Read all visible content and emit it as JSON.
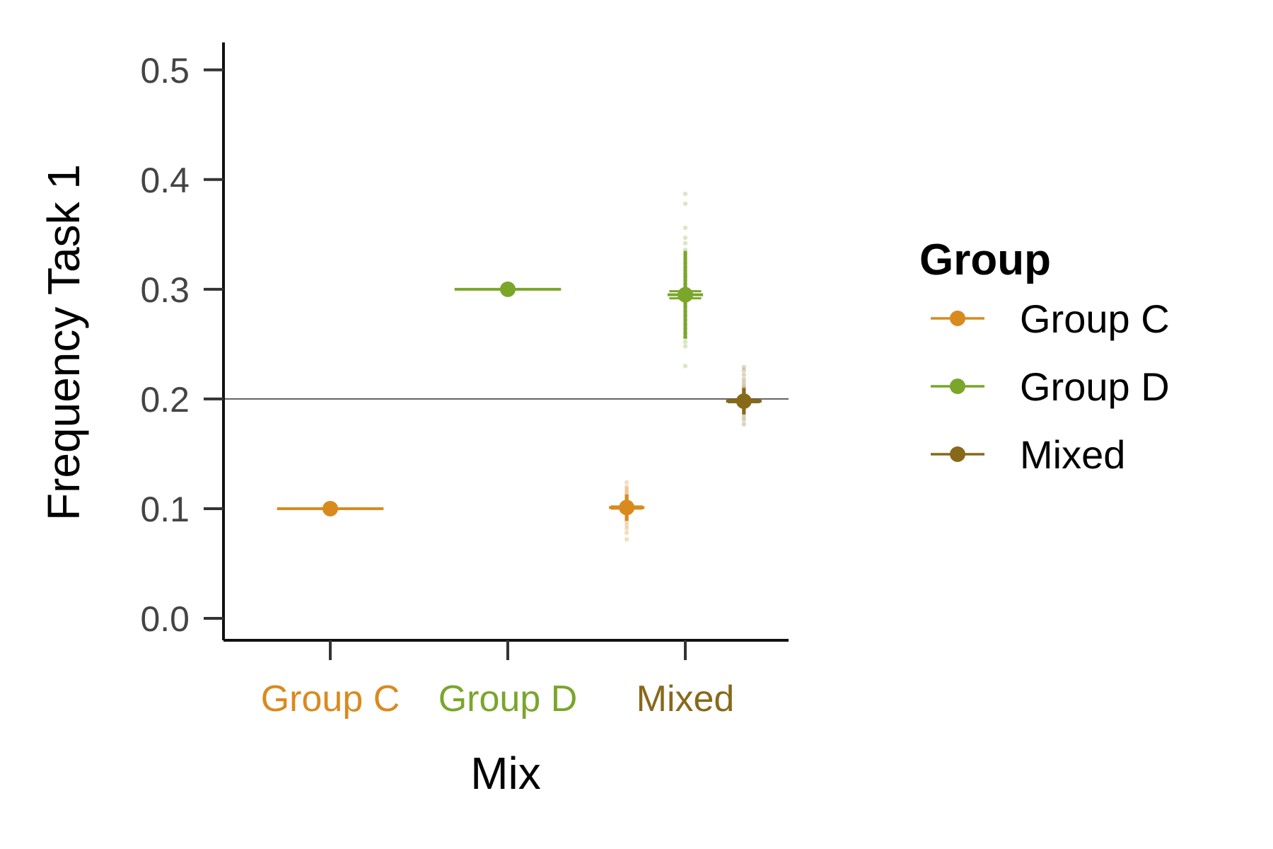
{
  "chart_data": {
    "type": "scatter",
    "title": "",
    "xlabel": "Mix",
    "ylabel": "Frequency Task 1",
    "ylim": [
      -0.02,
      0.525
    ],
    "yticks": [
      "0.0",
      "0.1",
      "0.2",
      "0.3",
      "0.4",
      "0.5"
    ],
    "ytick_values": [
      0.0,
      0.1,
      0.2,
      0.3,
      0.4,
      0.5
    ],
    "categories": [
      "Group C",
      "Group D",
      "Mixed"
    ],
    "category_colors": [
      "#D98A1F",
      "#7AA62A",
      "#87691A"
    ],
    "reference_line": {
      "y": 0.2,
      "color": "#333333"
    },
    "grid": false,
    "legend": {
      "title": "Group",
      "placement": "right",
      "entries": [
        {
          "label": "Group C",
          "color": "#D98A1F"
        },
        {
          "label": "Group D",
          "color": "#7AA62A"
        },
        {
          "label": "Mixed",
          "color": "#87691A"
        }
      ]
    },
    "series": [
      {
        "name": "Group C",
        "color": "#D98A1F",
        "points": [
          {
            "category": "Group C",
            "offset": 0.0,
            "mean": 0.1,
            "half_width": 0.3,
            "sd": 0.0
          },
          {
            "category": "Mixed",
            "offset": -0.33,
            "mean": 0.101,
            "half_width": 0.1,
            "sd": 0.012
          }
        ],
        "samples": [
          {
            "category": "Mixed",
            "offset": -0.33,
            "values": [
              0.072,
              0.078,
              0.082,
              0.085,
              0.088,
              0.09,
              0.092,
              0.094,
              0.096,
              0.098,
              0.1,
              0.1,
              0.101,
              0.102,
              0.104,
              0.106,
              0.108,
              0.11,
              0.112,
              0.114,
              0.116,
              0.118,
              0.12,
              0.124
            ]
          }
        ]
      },
      {
        "name": "Group D",
        "color": "#7AA62A",
        "points": [
          {
            "category": "Group D",
            "offset": 0.0,
            "mean": 0.3,
            "half_width": 0.3,
            "sd": 0.0
          },
          {
            "category": "Mixed",
            "offset": 0.0,
            "mean": 0.295,
            "half_width": 0.1,
            "sd": 0.04
          }
        ],
        "samples": [
          {
            "category": "Mixed",
            "offset": 0.0,
            "values": [
              0.23,
              0.248,
              0.252,
              0.256,
              0.26,
              0.264,
              0.268,
              0.272,
              0.276,
              0.28,
              0.284,
              0.287,
              0.29,
              0.293,
              0.295,
              0.298,
              0.3,
              0.302,
              0.305,
              0.308,
              0.311,
              0.314,
              0.317,
              0.32,
              0.324,
              0.328,
              0.332,
              0.336,
              0.342,
              0.347,
              0.356,
              0.378,
              0.387
            ]
          }
        ]
      },
      {
        "name": "Mixed",
        "color": "#87691A",
        "points": [
          {
            "category": "Mixed",
            "offset": 0.33,
            "mean": 0.198,
            "half_width": 0.1,
            "sd": 0.012
          }
        ],
        "samples": [
          {
            "category": "Mixed",
            "offset": 0.33,
            "values": [
              0.177,
              0.181,
              0.184,
              0.187,
              0.19,
              0.192,
              0.194,
              0.196,
              0.198,
              0.198,
              0.2,
              0.202,
              0.204,
              0.206,
              0.208,
              0.21,
              0.212,
              0.215,
              0.218,
              0.222,
              0.226,
              0.229
            ]
          }
        ]
      }
    ]
  }
}
